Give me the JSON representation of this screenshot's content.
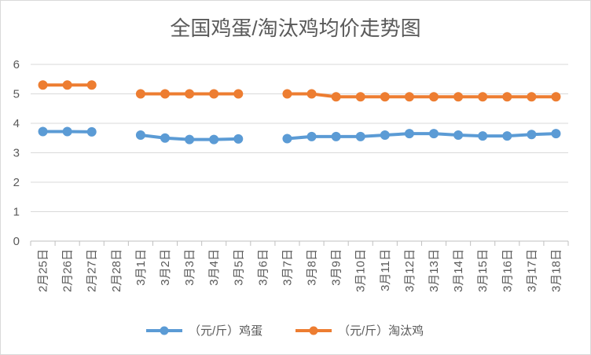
{
  "chart_data": {
    "type": "line",
    "title": "全国鸡蛋/淘汰鸡均价走势图",
    "xlabel": "",
    "ylabel": "",
    "ylim": [
      0,
      6
    ],
    "yticks": [
      0,
      1,
      2,
      3,
      4,
      5,
      6
    ],
    "grid": true,
    "legend": "bottom",
    "categories": [
      "2月25日",
      "2月26日",
      "2月27日",
      "2月28日",
      "3月1日",
      "3月2日",
      "3月3日",
      "3月4日",
      "3月5日",
      "3月6日",
      "3月7日",
      "3月8日",
      "3月9日",
      "3月10日",
      "3月11日",
      "3月12日",
      "3月13日",
      "3月14日",
      "3月15日",
      "3月16日",
      "3月17日",
      "3月18日"
    ],
    "series": [
      {
        "name": "（元/斤）鸡蛋",
        "color": "#5b9bd5",
        "values": [
          3.72,
          3.72,
          3.71,
          null,
          3.6,
          3.5,
          3.45,
          3.45,
          3.47,
          null,
          3.48,
          3.55,
          3.55,
          3.55,
          3.6,
          3.65,
          3.65,
          3.6,
          3.57,
          3.57,
          3.62,
          3.65
        ]
      },
      {
        "name": "（元/斤）淘汰鸡",
        "color": "#ed7d31",
        "values": [
          5.3,
          5.3,
          5.3,
          null,
          5.0,
          5.0,
          5.0,
          5.0,
          5.0,
          null,
          5.0,
          5.0,
          4.9,
          4.9,
          4.9,
          4.9,
          4.9,
          4.9,
          4.9,
          4.9,
          4.9,
          4.9
        ]
      }
    ]
  }
}
